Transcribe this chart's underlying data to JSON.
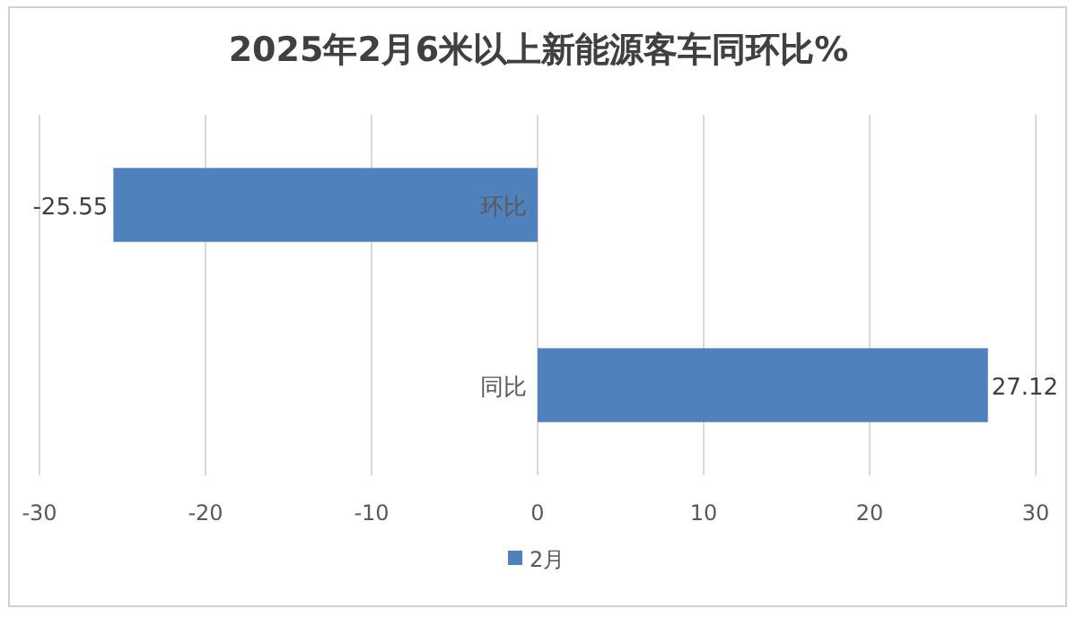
{
  "chart_data": {
    "type": "bar",
    "orientation": "horizontal",
    "title": "2025年2月6米以上新能源客车同环比%",
    "categories": [
      "环比",
      "同比"
    ],
    "series": [
      {
        "name": "2月",
        "color": "#4f81bd",
        "values": [
          -25.55,
          27.12
        ]
      }
    ],
    "xlim": [
      -30,
      30
    ],
    "xticks": [
      -30,
      -20,
      -10,
      0,
      10,
      20,
      30
    ],
    "grid": "x",
    "legend": "bottom",
    "data_labels": true
  }
}
